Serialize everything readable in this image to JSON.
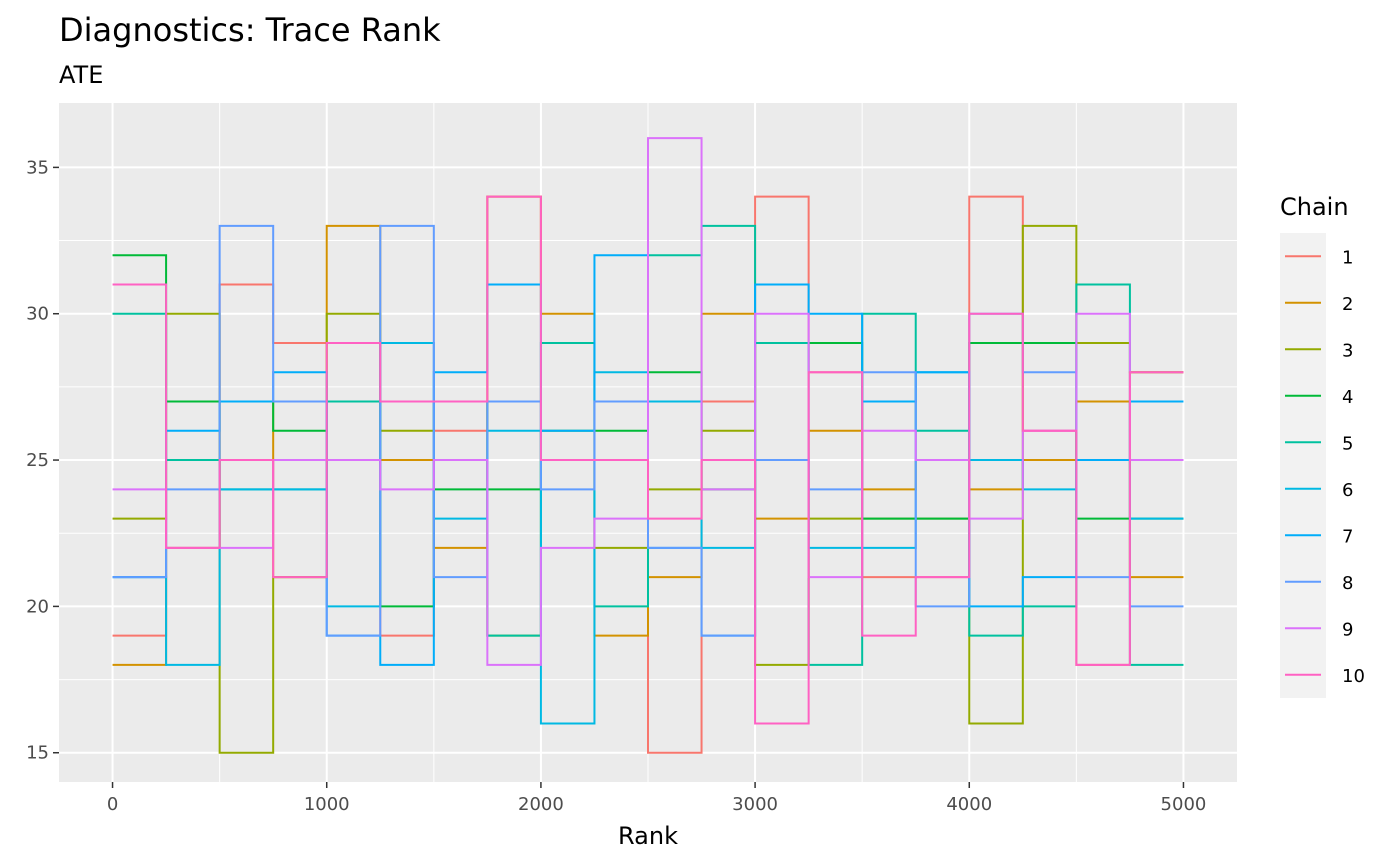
{
  "chart_data": {
    "type": "line",
    "title": "Diagnostics: Trace Rank",
    "subtitle": "ATE",
    "xlabel": "Rank",
    "ylabel": "",
    "xlim": [
      -250,
      5250
    ],
    "ylim": [
      14,
      37.2
    ],
    "x_ticks": [
      0,
      1000,
      2000,
      3000,
      4000,
      5000
    ],
    "y_ticks": [
      15,
      20,
      25,
      30,
      35
    ],
    "grid": true,
    "step": true,
    "bin_edges": [
      0,
      250,
      500,
      750,
      1000,
      1250,
      1500,
      1750,
      2000,
      2250,
      2500,
      2750,
      3000,
      3250,
      3500,
      3750,
      4000,
      4250,
      4500,
      4750,
      5000
    ],
    "legend": {
      "title": "Chain",
      "position": "right"
    },
    "series": [
      {
        "name": "1",
        "color": "#F8766D",
        "values": [
          19,
          27,
          31,
          29,
          29,
          19,
          26,
          34,
          25,
          25,
          15,
          27,
          34,
          28,
          21,
          21,
          34,
          26,
          18,
          28
        ]
      },
      {
        "name": "2",
        "color": "#D39200",
        "values": [
          18,
          22,
          27,
          21,
          33,
          25,
          22,
          34,
          30,
          19,
          21,
          30,
          23,
          26,
          24,
          25,
          24,
          25,
          27,
          21
        ]
      },
      {
        "name": "3",
        "color": "#93AA00",
        "values": [
          23,
          30,
          15,
          21,
          30,
          26,
          27,
          19,
          25,
          22,
          24,
          26,
          18,
          23,
          23,
          23,
          16,
          33,
          29,
          28
        ]
      },
      {
        "name": "4",
        "color": "#00BA38",
        "values": [
          32,
          27,
          27,
          26,
          27,
          20,
          24,
          24,
          26,
          26,
          28,
          24,
          29,
          29,
          23,
          23,
          29,
          29,
          23,
          23
        ]
      },
      {
        "name": "5",
        "color": "#00C19F",
        "values": [
          30,
          25,
          24,
          24,
          27,
          27,
          27,
          19,
          29,
          20,
          32,
          33,
          29,
          18,
          30,
          26,
          19,
          20,
          31,
          18
        ]
      },
      {
        "name": "6",
        "color": "#00B9E3",
        "values": [
          21,
          18,
          24,
          24,
          20,
          29,
          23,
          26,
          16,
          28,
          27,
          22,
          25,
          22,
          22,
          28,
          25,
          24,
          25,
          23
        ]
      },
      {
        "name": "7",
        "color": "#00ADFA",
        "values": [
          21,
          26,
          27,
          28,
          19,
          18,
          28,
          31,
          26,
          32,
          22,
          19,
          31,
          30,
          27,
          28,
          20,
          21,
          25,
          27
        ]
      },
      {
        "name": "8",
        "color": "#619CFF",
        "values": [
          21,
          24,
          33,
          27,
          19,
          33,
          21,
          27,
          24,
          27,
          22,
          19,
          25,
          24,
          28,
          20,
          30,
          28,
          21,
          20
        ]
      },
      {
        "name": "9",
        "color": "#DB72FB",
        "values": [
          24,
          22,
          22,
          25,
          25,
          24,
          25,
          18,
          22,
          23,
          36,
          24,
          30,
          21,
          26,
          25,
          23,
          26,
          30,
          25
        ]
      },
      {
        "name": "10",
        "color": "#FF61C3",
        "values": [
          31,
          22,
          25,
          21,
          29,
          27,
          27,
          34,
          25,
          25,
          23,
          25,
          16,
          28,
          19,
          21,
          30,
          26,
          18,
          28
        ]
      }
    ]
  }
}
